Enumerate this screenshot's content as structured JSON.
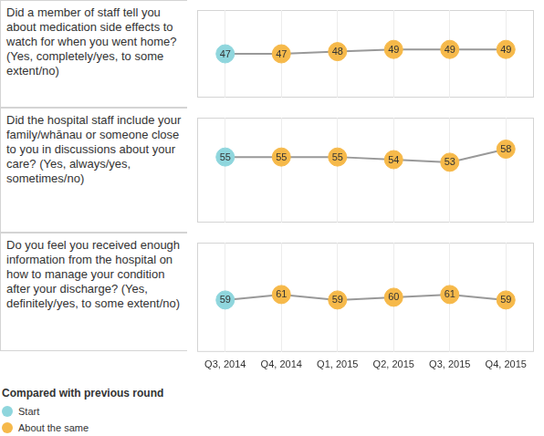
{
  "chart_data": [
    {
      "type": "line",
      "title": "Did a member of staff tell you about medication side effects to watch for when you went home? (Yes, completely/yes, to some extent/no)",
      "categories": [
        "Q3, 2014",
        "Q4, 2014",
        "Q1, 2015",
        "Q2, 2015",
        "Q3, 2015",
        "Q4, 2015"
      ],
      "series": [
        {
          "color": "#999999",
          "values": [
            47,
            47,
            48,
            49,
            49,
            49
          ],
          "colors": [
            "#8fd6dd",
            "#f6b94a",
            "#f6b94a",
            "#f6b94a",
            "#f6b94a",
            "#f6b94a"
          ]
        }
      ],
      "ylim": [
        27,
        67
      ],
      "grid": true,
      "data_labels": true,
      "tick_labels": false,
      "marker": "circle"
    },
    {
      "type": "line",
      "title": "Did the hospital staff include your family/whānau or someone close to you in discussions about your care? (Yes, always/yes, sometimes/no)",
      "categories": [
        "Q3, 2014",
        "Q4, 2014",
        "Q1, 2015",
        "Q2, 2015",
        "Q3, 2015",
        "Q4, 2015"
      ],
      "series": [
        {
          "color": "#999999",
          "values": [
            55,
            55,
            55,
            54,
            53,
            58
          ],
          "colors": [
            "#8fd6dd",
            "#f6b94a",
            "#f6b94a",
            "#f6b94a",
            "#f6b94a",
            "#f6b94a"
          ]
        }
      ],
      "ylim": [
        30,
        70
      ],
      "grid": true,
      "data_labels": true,
      "tick_labels": false,
      "marker": "circle"
    },
    {
      "type": "line",
      "title": "Do you feel you received enough information from the hospital on how to manage your condition after your discharge? (Yes, definitely/yes, to some extent/no)",
      "categories": [
        "Q3, 2014",
        "Q4, 2014",
        "Q1, 2015",
        "Q2, 2015",
        "Q3, 2015",
        "Q4, 2015"
      ],
      "series": [
        {
          "color": "#999999",
          "values": [
            59,
            61,
            59,
            60,
            61,
            59
          ],
          "colors": [
            "#8fd6dd",
            "#f6b94a",
            "#f6b94a",
            "#f6b94a",
            "#f6b94a",
            "#f6b94a"
          ]
        }
      ],
      "ylim": [
        40,
        80
      ],
      "grid": true,
      "data_labels": true,
      "tick_labels": "x",
      "marker": "circle"
    }
  ],
  "legend_box": {
    "title": "Compared with previous round",
    "items": [
      {
        "name": "Start",
        "color": "#8fd6dd"
      },
      {
        "name": "About the same",
        "color": "#f6b94a"
      }
    ]
  }
}
